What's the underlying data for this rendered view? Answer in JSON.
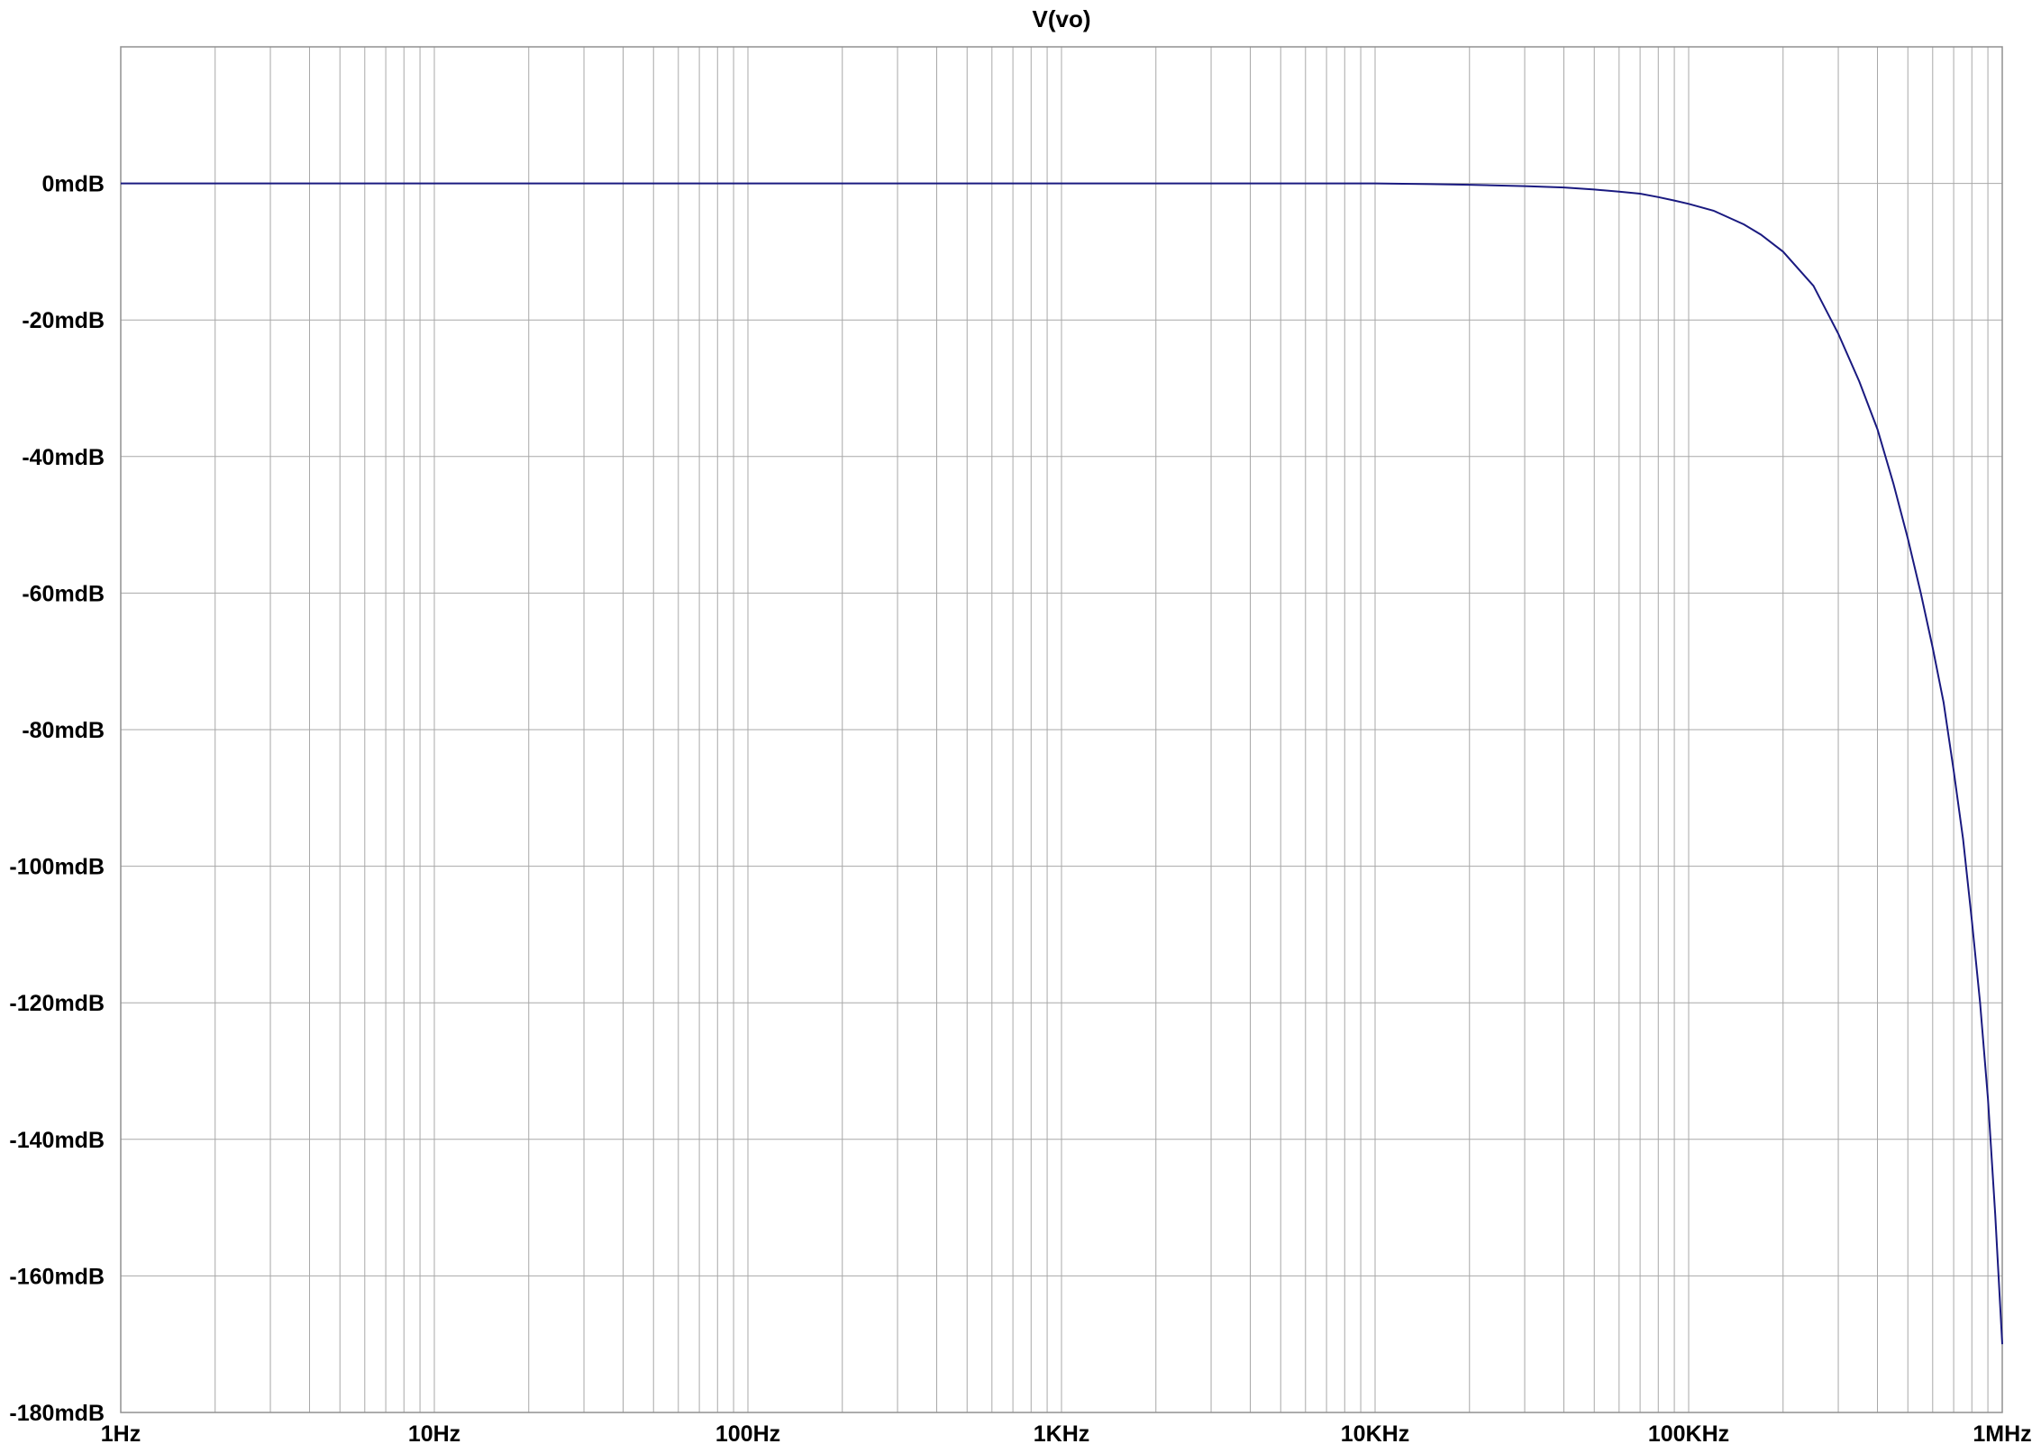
{
  "chart_data": {
    "type": "line",
    "title": "V(vo)",
    "xlabel": "",
    "ylabel": "",
    "x_scale": "log",
    "xlim": [
      1,
      1000000
    ],
    "ylim": [
      -180,
      20
    ],
    "grid": true,
    "x_ticks": [
      {
        "value": 1,
        "label": "1Hz"
      },
      {
        "value": 10,
        "label": "10Hz"
      },
      {
        "value": 100,
        "label": "100Hz"
      },
      {
        "value": 1000,
        "label": "1KHz"
      },
      {
        "value": 10000,
        "label": "10KHz"
      },
      {
        "value": 100000,
        "label": "100KHz"
      },
      {
        "value": 1000000,
        "label": "1MHz"
      }
    ],
    "y_ticks": [
      {
        "value": 0,
        "label": "0mdB"
      },
      {
        "value": -20,
        "label": "-20mdB"
      },
      {
        "value": -40,
        "label": "-40mdB"
      },
      {
        "value": -60,
        "label": "-60mdB"
      },
      {
        "value": -80,
        "label": "-80mdB"
      },
      {
        "value": -100,
        "label": "-100mdB"
      },
      {
        "value": -120,
        "label": "-120mdB"
      },
      {
        "value": -140,
        "label": "-140mdB"
      },
      {
        "value": -160,
        "label": "-160mdB"
      },
      {
        "value": -180,
        "label": "-180mdB"
      }
    ],
    "series": [
      {
        "x": [
          1,
          10,
          100,
          1000,
          10000,
          15000,
          20000,
          30000,
          40000,
          50000,
          60000,
          70000,
          80000,
          90000,
          100000,
          120000,
          150000,
          170000,
          200000,
          250000,
          300000,
          350000,
          400000,
          450000,
          500000,
          550000,
          600000,
          650000,
          700000,
          750000,
          800000,
          850000,
          900000,
          950000,
          1000000
        ],
        "y": [
          0,
          0,
          0,
          0,
          0,
          -0.1,
          -0.2,
          -0.4,
          -0.6,
          -0.9,
          -1.2,
          -1.5,
          -2,
          -2.5,
          -3,
          -4,
          -6,
          -7.5,
          -10,
          -15,
          -22,
          -29,
          -36,
          -44,
          -52,
          -60,
          -68,
          -76,
          -86,
          -96,
          -108,
          -120,
          -134,
          -151,
          -170
        ]
      }
    ],
    "colors": {
      "title": "#1a1a99",
      "line": "#1a1a80",
      "grid": "#a8a8a8",
      "frame": "#909090",
      "text": "#000000"
    }
  }
}
